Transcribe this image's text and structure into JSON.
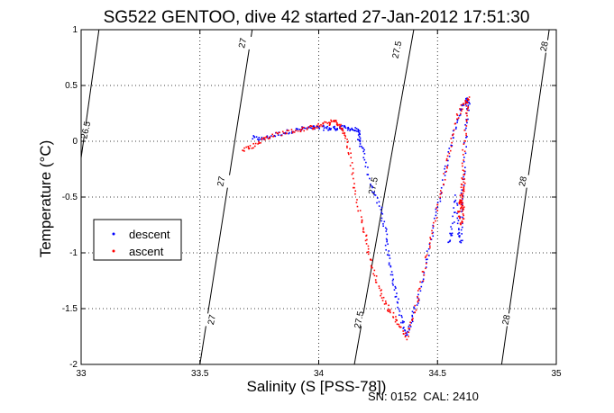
{
  "chart_data": {
    "type": "scatter",
    "title": "SG522 GENTOO, dive 42 started 27-Jan-2012 17:51:30",
    "xlabel": "Salinity (S [PSS-78])",
    "ylabel": "Temperature (°C)",
    "xlim": [
      33,
      35
    ],
    "ylim": [
      -2,
      1
    ],
    "x_ticks": [
      "33",
      "33.5",
      "34",
      "34.5",
      "35"
    ],
    "y_ticks": [
      "-2",
      "-1.5",
      "-1",
      "-0.5",
      "0",
      "0.5",
      "1"
    ],
    "grid": true,
    "grid_style": "dotted",
    "legend_position": "middle-left",
    "footer": "SN: 0152  CAL: 2410",
    "density_contours": [
      {
        "label": "26.5",
        "x": [
          33.0,
          33.075
        ],
        "y": [
          -0.15,
          1.0
        ]
      },
      {
        "label": "27",
        "x": [
          33.5,
          33.72
        ],
        "y": [
          -2.0,
          1.0
        ]
      },
      {
        "label": "27.5",
        "x": [
          34.15,
          34.4
        ],
        "y": [
          -2.0,
          1.0
        ]
      },
      {
        "label": "28",
        "x": [
          34.77,
          34.97
        ],
        "y": [
          -2.0,
          1.0
        ]
      }
    ],
    "contour_label_positions": [
      {
        "label": "26.5",
        "x": 33.02,
        "y": 0.1
      },
      {
        "label": "27",
        "x": 33.68,
        "y": 0.88
      },
      {
        "label": "27",
        "x": 33.59,
        "y": -0.36
      },
      {
        "label": "27",
        "x": 33.55,
        "y": -1.6
      },
      {
        "label": "27.5",
        "x": 34.33,
        "y": 0.82
      },
      {
        "label": "27.5",
        "x": 34.23,
        "y": -0.4
      },
      {
        "label": "27.5",
        "x": 34.17,
        "y": -1.6
      },
      {
        "label": "28",
        "x": 34.95,
        "y": 0.85
      },
      {
        "label": "28",
        "x": 34.86,
        "y": -0.36
      },
      {
        "label": "28",
        "x": 34.79,
        "y": -1.6
      }
    ],
    "series": [
      {
        "name": "descent",
        "color": "#0000ff",
        "marker": "dot",
        "path": [
          [
            33.72,
            0.03
          ],
          [
            33.76,
            0.02
          ],
          [
            33.82,
            0.06
          ],
          [
            33.88,
            0.09
          ],
          [
            33.93,
            0.11
          ],
          [
            33.98,
            0.12
          ],
          [
            34.02,
            0.12
          ],
          [
            34.05,
            0.11
          ],
          [
            34.08,
            0.12
          ],
          [
            34.11,
            0.12
          ],
          [
            34.14,
            0.11
          ],
          [
            34.17,
            0.09
          ],
          [
            34.17,
            0.0
          ],
          [
            34.19,
            -0.1
          ],
          [
            34.22,
            -0.4
          ],
          [
            34.26,
            -0.6
          ],
          [
            34.28,
            -0.8
          ],
          [
            34.29,
            -1.0
          ],
          [
            34.31,
            -1.2
          ],
          [
            34.33,
            -1.4
          ],
          [
            34.35,
            -1.6
          ],
          [
            34.37,
            -1.75
          ],
          [
            34.39,
            -1.6
          ],
          [
            34.42,
            -1.4
          ],
          [
            34.45,
            -1.1
          ],
          [
            34.48,
            -0.8
          ],
          [
            34.51,
            -0.5
          ],
          [
            34.54,
            -0.2
          ],
          [
            34.57,
            0.1
          ],
          [
            34.6,
            0.28
          ],
          [
            34.62,
            0.38
          ],
          [
            34.63,
            0.33
          ],
          [
            34.62,
            0.1
          ],
          [
            34.61,
            -0.3
          ],
          [
            34.6,
            -0.6
          ],
          [
            34.6,
            -0.9
          ],
          [
            34.59,
            -0.8
          ],
          [
            34.58,
            -0.5
          ],
          [
            34.56,
            -0.8
          ],
          [
            34.55,
            -0.9
          ]
        ]
      },
      {
        "name": "ascent",
        "color": "#ff0000",
        "marker": "dot",
        "path": [
          [
            33.68,
            -0.07
          ],
          [
            33.72,
            -0.05
          ],
          [
            33.76,
            0.01
          ],
          [
            33.8,
            0.05
          ],
          [
            33.86,
            0.08
          ],
          [
            33.92,
            0.1
          ],
          [
            33.96,
            0.12
          ],
          [
            34.0,
            0.14
          ],
          [
            34.04,
            0.16
          ],
          [
            34.07,
            0.18
          ],
          [
            34.09,
            0.13
          ],
          [
            34.11,
            0.06
          ],
          [
            34.13,
            -0.1
          ],
          [
            34.15,
            -0.4
          ],
          [
            34.18,
            -0.7
          ],
          [
            34.2,
            -0.9
          ],
          [
            34.22,
            -1.1
          ],
          [
            34.25,
            -1.3
          ],
          [
            34.28,
            -1.45
          ],
          [
            34.31,
            -1.55
          ],
          [
            34.34,
            -1.65
          ],
          [
            34.37,
            -1.76
          ],
          [
            34.4,
            -1.55
          ],
          [
            34.43,
            -1.3
          ],
          [
            34.46,
            -1.0
          ],
          [
            34.49,
            -0.7
          ],
          [
            34.52,
            -0.4
          ],
          [
            34.55,
            -0.1
          ],
          [
            34.58,
            0.2
          ],
          [
            34.61,
            0.35
          ],
          [
            34.63,
            0.38
          ],
          [
            34.62,
            0.2
          ],
          [
            34.61,
            -0.1
          ],
          [
            34.61,
            -0.4
          ],
          [
            34.6,
            -0.55
          ],
          [
            34.61,
            -0.6
          ],
          [
            34.6,
            -0.75
          ],
          [
            34.59,
            -0.62
          ],
          [
            34.6,
            -0.5
          ],
          [
            34.61,
            -0.3
          ]
        ]
      }
    ]
  },
  "legend": {
    "items": [
      {
        "label": "descent",
        "color": "#0000ff"
      },
      {
        "label": "ascent",
        "color": "#ff0000"
      }
    ]
  }
}
